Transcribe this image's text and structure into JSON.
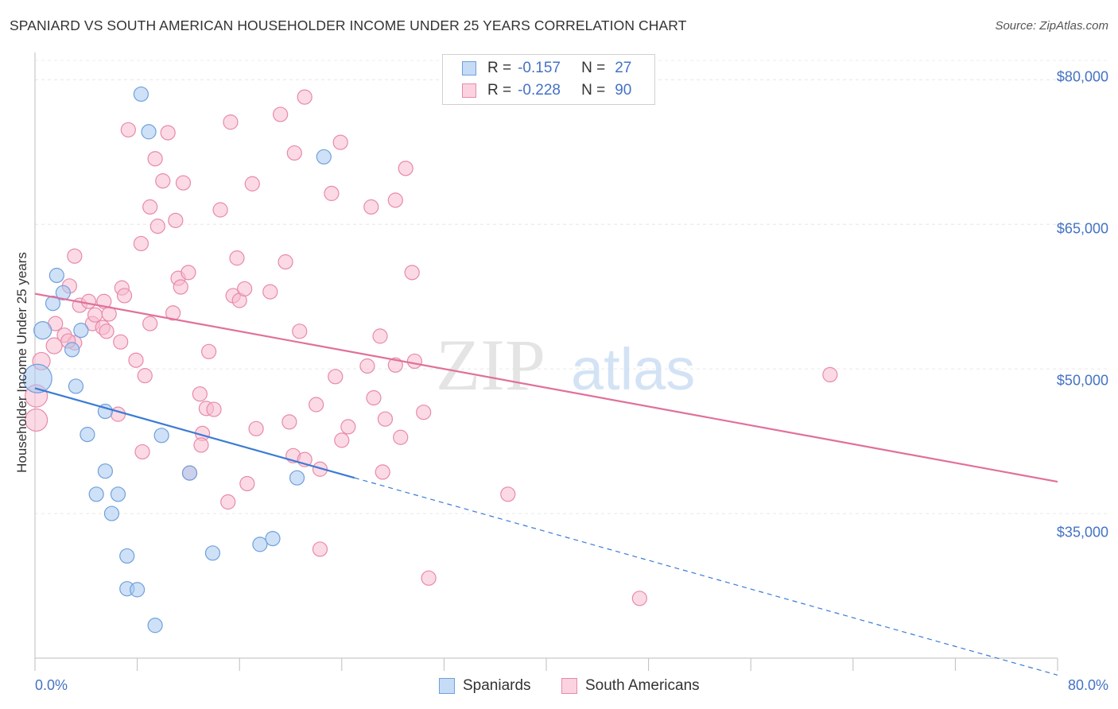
{
  "title": "SPANIARD VS SOUTH AMERICAN HOUSEHOLDER INCOME UNDER 25 YEARS CORRELATION CHART",
  "source": "Source: ZipAtlas.com",
  "watermark": {
    "zip": "ZIP",
    "atlas": "atlas"
  },
  "legend": {
    "r_label": "R =",
    "n_label": "N =",
    "rows": [
      {
        "r": "-0.157",
        "n": "27",
        "color": "#a8c8f0",
        "edge": "#6fa0dc"
      },
      {
        "r": "-0.228",
        "n": "90",
        "color": "#f8bcd0",
        "edge": "#e88aa8"
      }
    ]
  },
  "bottom_legend": [
    "Spaniards",
    "South Americans"
  ],
  "chart_data": {
    "type": "scatter",
    "title": "SPANIARD VS SOUTH AMERICAN HOUSEHOLDER INCOME UNDER 25 YEARS CORRELATION CHART",
    "xlabel": "",
    "ylabel": "Householder Income Under 25 years",
    "x_tick_labels": [
      "0.0%",
      "80.0%"
    ],
    "y_tick_labels": [
      "$80,000",
      "$65,000",
      "$50,000",
      "$35,000"
    ],
    "y_ticks": [
      80000,
      65000,
      50000,
      35000
    ],
    "xlim": [
      0,
      80
    ],
    "ylim": [
      20000,
      82000
    ],
    "grid": true,
    "series": [
      {
        "name": "Spaniards",
        "color": "#a8c8f0",
        "edge": "#6fa0dc",
        "line_color": "#3a7bd5",
        "trend": {
          "x0": 0,
          "y0": 48000,
          "x1": 25,
          "y1": 38700,
          "dash_to_x": 80
        },
        "points": [
          [
            0.2,
            49000,
            18
          ],
          [
            0.6,
            54000,
            11
          ],
          [
            1.4,
            56800,
            9
          ],
          [
            1.7,
            59700,
            9
          ],
          [
            2.2,
            57900,
            9
          ],
          [
            3.6,
            54000,
            9
          ],
          [
            2.9,
            52000,
            9
          ],
          [
            3.2,
            48200,
            9
          ],
          [
            4.1,
            43200,
            9
          ],
          [
            5.5,
            45600,
            9
          ],
          [
            6.5,
            37000,
            9
          ],
          [
            8.3,
            78500,
            9
          ],
          [
            8.9,
            74600,
            9
          ],
          [
            22.6,
            72000,
            9
          ],
          [
            4.8,
            37000,
            9
          ],
          [
            5.5,
            39400,
            9
          ],
          [
            6.0,
            35000,
            9
          ],
          [
            9.9,
            43100,
            9
          ],
          [
            12.1,
            39200,
            9
          ],
          [
            20.5,
            38700,
            9
          ],
          [
            7.2,
            30600,
            9
          ],
          [
            13.9,
            30900,
            9
          ],
          [
            17.6,
            31800,
            9
          ],
          [
            18.6,
            32400,
            9
          ],
          [
            7.2,
            27200,
            9
          ],
          [
            8.0,
            27100,
            9
          ],
          [
            9.4,
            23400,
            9
          ]
        ]
      },
      {
        "name": "South Americans",
        "color": "#f8bcd0",
        "edge": "#e88aa8",
        "line_color": "#e0709a",
        "trend": {
          "x0": 0,
          "y0": 57800,
          "x1": 80,
          "y1": 38300
        },
        "points": [
          [
            0.1,
            47200,
            14
          ],
          [
            0.1,
            44700,
            14
          ],
          [
            0.5,
            50800,
            11
          ],
          [
            1.5,
            52400,
            10
          ],
          [
            1.6,
            54700,
            9
          ],
          [
            2.3,
            53500,
            9
          ],
          [
            3.1,
            52700,
            9
          ],
          [
            2.7,
            58600,
            9
          ],
          [
            3.1,
            61700,
            9
          ],
          [
            3.5,
            56600,
            9
          ],
          [
            4.5,
            54700,
            9
          ],
          [
            4.7,
            55600,
            9
          ],
          [
            5.4,
            57000,
            9
          ],
          [
            5.8,
            55700,
            9
          ],
          [
            5.3,
            54300,
            9
          ],
          [
            5.6,
            53900,
            9
          ],
          [
            6.8,
            58400,
            9
          ],
          [
            6.7,
            52800,
            9
          ],
          [
            7.0,
            57600,
            9
          ],
          [
            7.9,
            50900,
            9
          ],
          [
            8.3,
            63000,
            9
          ],
          [
            8.6,
            49300,
            9
          ],
          [
            9.0,
            54700,
            9
          ],
          [
            7.3,
            74800,
            9
          ],
          [
            9.4,
            71800,
            9
          ],
          [
            9.0,
            66800,
            9
          ],
          [
            9.6,
            64800,
            9
          ],
          [
            10.0,
            69500,
            9
          ],
          [
            10.4,
            74500,
            9
          ],
          [
            11.0,
            65400,
            9
          ],
          [
            11.6,
            69300,
            9
          ],
          [
            11.2,
            59400,
            9
          ],
          [
            12.0,
            60000,
            9
          ],
          [
            11.4,
            58500,
            9
          ],
          [
            10.8,
            55800,
            9
          ],
          [
            13.6,
            51800,
            9
          ],
          [
            12.9,
            47400,
            9
          ],
          [
            13.4,
            45900,
            9
          ],
          [
            14.0,
            45800,
            9
          ],
          [
            13.1,
            43300,
            9
          ],
          [
            12.1,
            39200,
            9
          ],
          [
            15.3,
            75600,
            9
          ],
          [
            14.5,
            66500,
            9
          ],
          [
            15.5,
            57600,
            9
          ],
          [
            15.8,
            61500,
            9
          ],
          [
            16.0,
            57100,
            9
          ],
          [
            16.4,
            58300,
            9
          ],
          [
            17.0,
            69200,
            9
          ],
          [
            17.3,
            43800,
            9
          ],
          [
            16.6,
            38100,
            9
          ],
          [
            15.1,
            36200,
            9
          ],
          [
            18.4,
            58000,
            9
          ],
          [
            19.2,
            76400,
            9
          ],
          [
            19.6,
            61100,
            9
          ],
          [
            20.3,
            72400,
            9
          ],
          [
            21.1,
            78200,
            9
          ],
          [
            20.7,
            53900,
            9
          ],
          [
            19.9,
            44500,
            9
          ],
          [
            20.2,
            41000,
            9
          ],
          [
            21.1,
            40600,
            9
          ],
          [
            22.0,
            46300,
            9
          ],
          [
            22.3,
            39600,
            9
          ],
          [
            22.3,
            31300,
            9
          ],
          [
            23.2,
            68200,
            9
          ],
          [
            23.9,
            73500,
            9
          ],
          [
            23.5,
            49200,
            9
          ],
          [
            24.0,
            42600,
            9
          ],
          [
            24.5,
            44000,
            9
          ],
          [
            26.0,
            50300,
            9
          ],
          [
            26.3,
            66800,
            9
          ],
          [
            26.5,
            47000,
            9
          ],
          [
            27.0,
            53400,
            9
          ],
          [
            27.2,
            39300,
            9
          ],
          [
            27.4,
            44800,
            9
          ],
          [
            28.2,
            50400,
            9
          ],
          [
            28.2,
            67500,
            9
          ],
          [
            29.0,
            70800,
            9
          ],
          [
            28.6,
            42900,
            9
          ],
          [
            29.5,
            60000,
            9
          ],
          [
            29.7,
            50800,
            9
          ],
          [
            30.4,
            45500,
            9
          ],
          [
            30.8,
            28300,
            9
          ],
          [
            37.0,
            37000,
            9
          ],
          [
            47.3,
            26200,
            9
          ],
          [
            62.2,
            49400,
            9
          ],
          [
            2.6,
            52900,
            9
          ],
          [
            8.4,
            41400,
            9
          ],
          [
            13.0,
            42100,
            9
          ],
          [
            4.2,
            57000,
            9
          ],
          [
            6.5,
            45300,
            9
          ]
        ]
      }
    ]
  }
}
